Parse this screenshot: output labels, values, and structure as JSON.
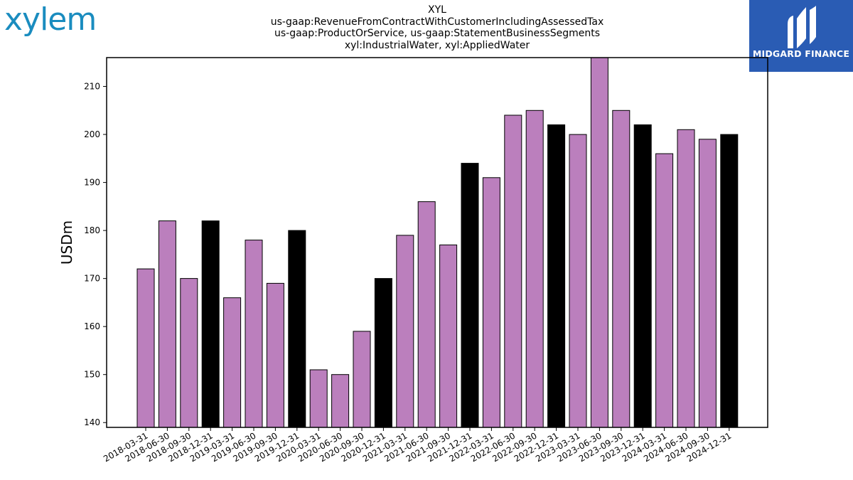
{
  "branding": {
    "left_logo": "xylem",
    "right_logo_text": "MIDGARD FINANCE"
  },
  "colors": {
    "bar_regular": "#bb7fbd",
    "bar_q4": "#000000",
    "bar_edge": "#000000",
    "logo_left": "#1a8cbf",
    "logo_right_bg": "#2a5cb4"
  },
  "chart_data": {
    "type": "bar",
    "title_lines": [
      "XYL",
      "us-gaap:RevenueFromContractWithCustomerIncludingAssessedTax",
      "us-gaap:ProductOrService, us-gaap:StatementBusinessSegments",
      "xyl:IndustrialWater, xyl:AppliedWater"
    ],
    "xlabel": "",
    "ylabel": "USDm",
    "ylim": [
      139,
      216
    ],
    "yticks": [
      140,
      150,
      160,
      170,
      180,
      190,
      200,
      210
    ],
    "grid": false,
    "legend": "none",
    "categories": [
      "2018-03-31",
      "2018-06-30",
      "2018-09-30",
      "2018-12-31",
      "2019-03-31",
      "2019-06-30",
      "2019-09-30",
      "2019-12-31",
      "2020-03-31",
      "2020-06-30",
      "2020-09-30",
      "2020-12-31",
      "2021-03-31",
      "2021-06-30",
      "2021-09-30",
      "2021-12-31",
      "2022-03-31",
      "2022-06-30",
      "2022-09-30",
      "2022-12-31",
      "2023-03-31",
      "2023-06-30",
      "2023-09-30",
      "2023-12-31",
      "2024-03-31",
      "2024-06-30",
      "2024-09-30",
      "2024-12-31"
    ],
    "values": [
      172,
      182,
      170,
      182,
      166,
      178,
      169,
      180,
      151,
      150,
      159,
      170,
      179,
      186,
      177,
      194,
      191,
      204,
      205,
      202,
      200,
      216,
      205,
      202,
      196,
      201,
      199,
      200
    ],
    "highlight_q4": [
      false,
      false,
      false,
      true,
      false,
      false,
      false,
      true,
      false,
      false,
      false,
      true,
      false,
      false,
      false,
      true,
      false,
      false,
      false,
      true,
      false,
      false,
      false,
      true,
      false,
      false,
      false,
      true
    ]
  }
}
